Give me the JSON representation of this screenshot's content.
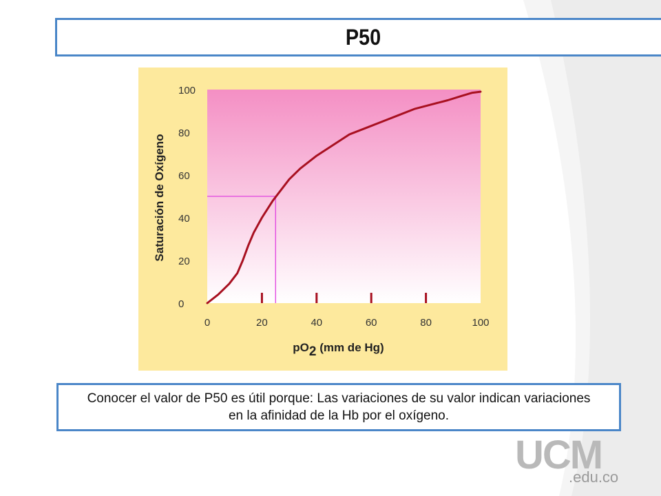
{
  "slide": {
    "title": "P50",
    "caption_line1": "Conocer el valor de P50 es útil porque: Las variaciones de su valor  indican  variaciones",
    "caption_line2": "en la afinidad de la Hb por el oxígeno.",
    "logo_main": "UCM",
    "logo_sub": ".edu.co"
  },
  "colors": {
    "accent_border": "#4a86c8",
    "panel_bg": "#fde99d",
    "plot_top": "#f48fc4",
    "plot_bottom": "#ffffff",
    "curve": "#a81020",
    "marker_line": "#e040e0",
    "logo": "#b9b9b9"
  },
  "chart_data": {
    "type": "line",
    "title": "",
    "xlabel": "pO",
    "xlabel_sub": "2",
    "xlabel_suffix": "(mm de Hg)",
    "ylabel": "Saturación de Oxígeno",
    "xlim": [
      0,
      100
    ],
    "ylim": [
      0,
      100
    ],
    "x_ticks": [
      "0",
      "20",
      "40",
      "60",
      "80",
      "100"
    ],
    "y_ticks": [
      "0",
      "20",
      "40",
      "60",
      "80",
      "100"
    ],
    "grid": false,
    "series": [
      {
        "x": [
          0,
          4,
          8,
          11,
          13,
          15,
          17,
          20,
          24,
          27,
          30,
          34,
          40,
          46,
          52,
          58,
          64,
          70,
          76,
          82,
          88,
          93,
          97,
          100
        ],
        "y": [
          0,
          4,
          9,
          14,
          20,
          27,
          33,
          40,
          48,
          53,
          58,
          63,
          69,
          74,
          79,
          82,
          85,
          88,
          91,
          93,
          95,
          97,
          98.5,
          99
        ]
      }
    ],
    "p50_marker": {
      "x": 25,
      "y": 50
    },
    "tick_marks_x": [
      20,
      40,
      60,
      80
    ]
  }
}
